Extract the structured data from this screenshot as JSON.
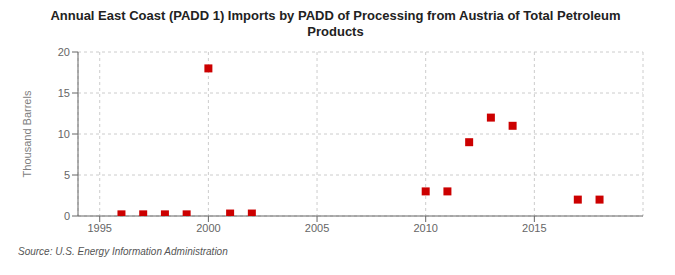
{
  "chart_data": {
    "type": "scatter",
    "title": "Annual East Coast (PADD 1) Imports by PADD of Processing from Austria of Total Petroleum\nProducts",
    "ylabel": "Thousand Barrels",
    "source": "Source: U.S. Energy Information Administration",
    "x": [
      1996,
      1997,
      1998,
      1999,
      2000,
      2001,
      2002,
      2010,
      2011,
      2012,
      2013,
      2014,
      2017,
      2018
    ],
    "values": [
      0.2,
      0.2,
      0.2,
      0.2,
      18,
      0.3,
      0.3,
      3,
      3,
      9,
      12,
      11,
      2,
      2
    ],
    "color": "#cc0000",
    "marker": "square",
    "xlim": [
      1994,
      2020
    ],
    "xticks": [
      1995,
      2000,
      2005,
      2010,
      2015
    ],
    "ylim": [
      0,
      20
    ],
    "yticks": [
      0,
      5,
      10,
      15,
      20
    ],
    "grid": true
  }
}
